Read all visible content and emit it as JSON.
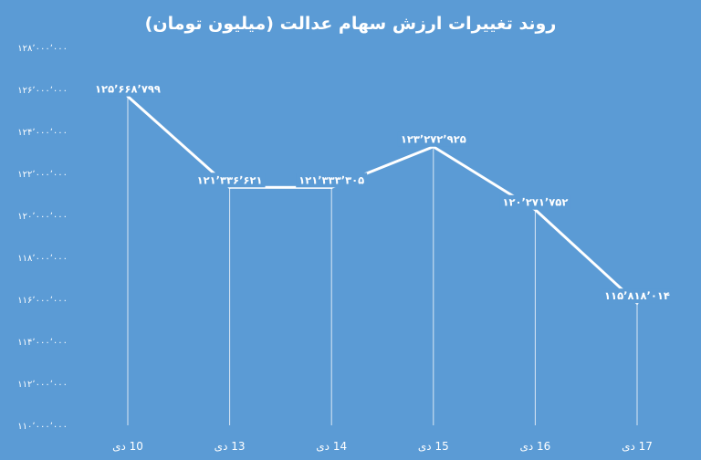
{
  "chart_data": {
    "type": "line",
    "title": "روند تغییرات ارزش سهام عدالت (میلیون تومان)",
    "categories": [
      "10 دی",
      "13 دی",
      "14 دی",
      "15 دی",
      "16 دی",
      "17 دی"
    ],
    "series": [
      {
        "values": [
          125668799,
          121336621,
          121333305,
          123272925,
          120271752,
          115818014
        ],
        "data_labels": [
          "۱۲۵٬۶۶۸٬۷۹۹",
          "۱۲۱٬۳۳۶٬۶۲۱",
          "۱۲۱٬۳۳۳٬۳۰۵",
          "۱۲۳٬۲۷۲٬۹۲۵",
          "۱۲۰٬۲۷۱٬۷۵۲",
          "۱۱۵٬۸۱۸٬۰۱۴"
        ]
      }
    ],
    "ylim": [
      110000000,
      128000000
    ],
    "yticks": [
      110000000,
      112000000,
      114000000,
      116000000,
      118000000,
      120000000,
      122000000,
      124000000,
      126000000,
      128000000
    ],
    "ytick_labels": [
      "۱۱۰٬۰۰۰٬۰۰۰",
      "۱۱۲٬۰۰۰٬۰۰۰",
      "۱۱۴٬۰۰۰٬۰۰۰",
      "۱۱۶٬۰۰۰٬۰۰۰",
      "۱۱۸٬۰۰۰٬۰۰۰",
      "۱۲۰٬۰۰۰٬۰۰۰",
      "۱۲۲٬۰۰۰٬۰۰۰",
      "۱۲۴٬۰۰۰٬۰۰۰",
      "۱۲۶٬۰۰۰٬۰۰۰",
      "۱۲۸٬۰۰۰٬۰۰۰"
    ],
    "grid": false,
    "colors": {
      "background": "#5b9bd5",
      "line": "#ffffff",
      "text": "#ffffff",
      "drop_line": "#dbe7f4"
    }
  }
}
